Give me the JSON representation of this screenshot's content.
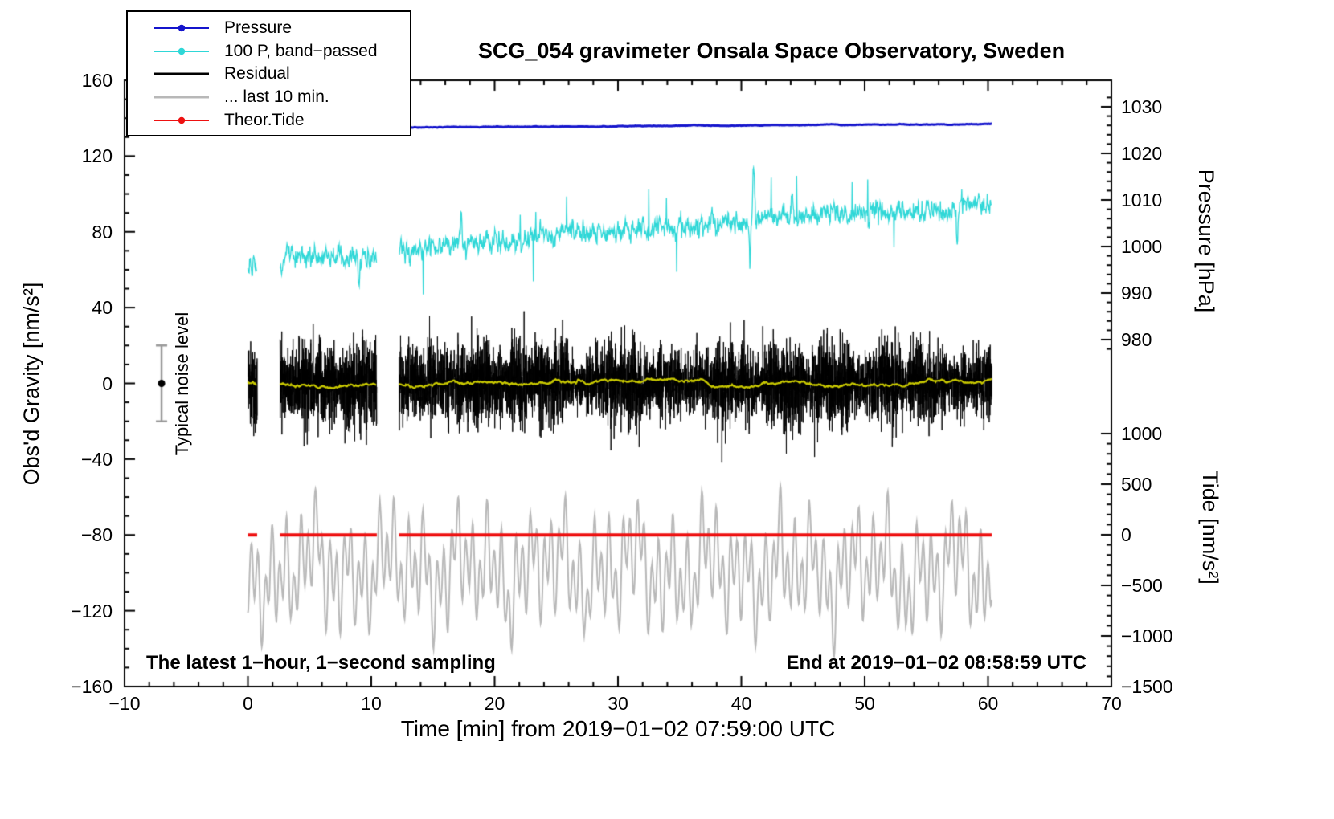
{
  "title": "SCG_054 gravimeter Onsala Space Observatory, Sweden",
  "legend": [
    {
      "label": "Pressure",
      "color": "#1414cc",
      "dot": true,
      "line_width": 2
    },
    {
      "label": "100 P, band−passed",
      "color": "#2fd7d7",
      "dot": true,
      "line_width": 2
    },
    {
      "label": "Residual",
      "color": "#000000",
      "dot": false,
      "line_width": 3
    },
    {
      "label": "... last 10 min.",
      "color": "#b8b8b8",
      "dot": false,
      "line_width": 3
    },
    {
      "label": "Theor.Tide",
      "color": "#ee1111",
      "dot": true,
      "line_width": 2
    }
  ],
  "annotations": {
    "sampling_note": "The latest 1−hour, 1−second sampling",
    "end_note": "End at 2019−01−02 08:58:59 UTC",
    "noise_label": "Typical noise level"
  },
  "chart_data": {
    "type": "line",
    "title": "SCG_054 gravimeter Onsala Space Observatory, Sweden",
    "x_axis": {
      "label": "Time [min] from 2019−01−02 07:59:00 UTC",
      "min": -10,
      "max": 70,
      "major_ticks": [
        -10,
        0,
        10,
        20,
        30,
        40,
        50,
        60,
        70
      ],
      "minor_step": 2
    },
    "y_left": {
      "label": "Obs'd Gravity [nm/s²]",
      "min": -160,
      "max": 160,
      "major_ticks": [
        160,
        120,
        80,
        40,
        0,
        -40,
        -80,
        -120,
        -160
      ],
      "minor_step": 10
    },
    "y_right_pressure": {
      "label": "Pressure [hPa]",
      "major_ticks": [
        1030,
        1020,
        1010,
        1000,
        990,
        980
      ],
      "minor_step": 2
    },
    "y_right_tide": {
      "label": "Tide [nm/s²]",
      "major_ticks": [
        1000,
        500,
        0,
        -500,
        -1000,
        -1500
      ],
      "minor_step": 100
    },
    "time_range_min": [
      0,
      60.3
    ],
    "gaps_min": [
      [
        0.75,
        2.6
      ],
      [
        10.45,
        12.25
      ]
    ],
    "seed": 20190102,
    "noise_bar": {
      "x_center_min": -7,
      "value": 0,
      "half_range": 20
    },
    "series": [
      {
        "name": "pressure",
        "axis": "pressure_hpa",
        "color": "#1414cc",
        "line_width": 3,
        "start_hpa": 1025.35,
        "end_hpa": 1026.3,
        "noise_hpa": 0.05
      },
      {
        "name": "band_passed_pressure",
        "axis": "gravity_nms2",
        "color": "#2fd7d7",
        "line_width": 1.3,
        "noise": 4,
        "spike_probability": 0.005,
        "baseline_points": [
          [
            0,
            62
          ],
          [
            1,
            59
          ],
          [
            3,
            64
          ],
          [
            5,
            68
          ],
          [
            7,
            66
          ],
          [
            9,
            67
          ],
          [
            10.4,
            66
          ],
          [
            12.3,
            69
          ],
          [
            15,
            72
          ],
          [
            17,
            74
          ],
          [
            20,
            75
          ],
          [
            23,
            77
          ],
          [
            26,
            79
          ],
          [
            28,
            80
          ],
          [
            30,
            80
          ],
          [
            33,
            82
          ],
          [
            35,
            83
          ],
          [
            38,
            83
          ],
          [
            40,
            84
          ],
          [
            41,
            87
          ],
          [
            43,
            88
          ],
          [
            45,
            88
          ],
          [
            48,
            89
          ],
          [
            50,
            90
          ],
          [
            53,
            91
          ],
          [
            55,
            91
          ],
          [
            57,
            93
          ],
          [
            59,
            94
          ],
          [
            60.3,
            93
          ]
        ],
        "events": [
          {
            "t": 41.0,
            "amp": 30,
            "w": 0.1
          },
          {
            "t": 40.7,
            "amp": -26,
            "w": 0.08
          },
          {
            "t": 17.3,
            "amp": 16,
            "w": 0.08
          },
          {
            "t": 44.1,
            "amp": 13,
            "w": 0.07
          },
          {
            "t": 9.0,
            "amp": -13,
            "w": 0.1
          },
          {
            "t": 57.5,
            "amp": -20,
            "w": 0.07
          }
        ]
      },
      {
        "name": "residual",
        "axis": "gravity_nms2",
        "color": "#000000",
        "line_width": 1,
        "sigma": 14,
        "clip": 66
      },
      {
        "name": "residual_mean",
        "axis": "gravity_nms2",
        "color": "#c9c900",
        "line_width": 2.2,
        "amp": 2.5
      },
      {
        "name": "last_10_min",
        "axis": "gravity_nms2",
        "color": "#b8b8b8",
        "line_width": 2,
        "baseline": -99,
        "components": [
          [
            0.58,
            17
          ],
          [
            1.25,
            13
          ],
          [
            2.9,
            9
          ],
          [
            6.5,
            7
          ]
        ],
        "noise": 6,
        "clamp": [
          -151,
          -53
        ]
      },
      {
        "name": "theor_tide",
        "axis": "gravity_nms2",
        "color": "#ee1111",
        "line_width": 4,
        "gravity_value": -80,
        "tide_value": 0
      }
    ]
  }
}
